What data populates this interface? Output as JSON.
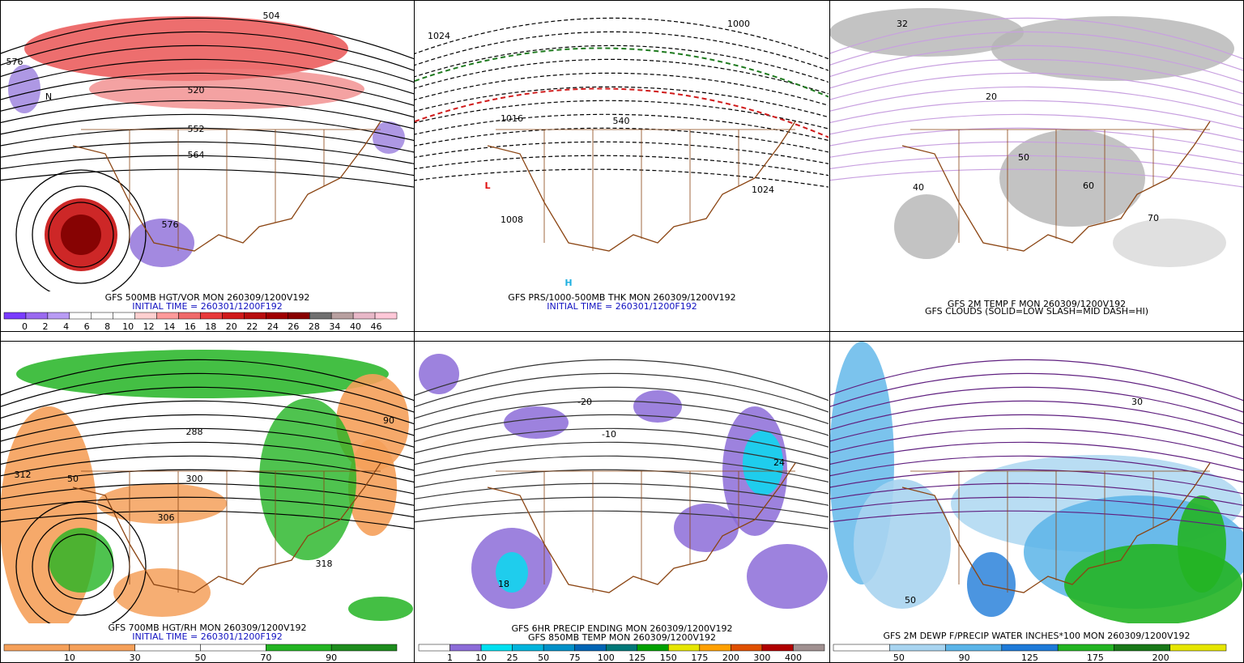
{
  "panels": [
    {
      "caption": [
        "GFS 500MB HGT/VOR MON 260309/1200V192",
        "INITIAL TIME = 260301/1200F192"
      ],
      "colorbar": {
        "labels": [
          "0",
          "2",
          "4",
          "6",
          "8",
          "10",
          "12",
          "14",
          "16",
          "18",
          "20",
          "22",
          "24",
          "26",
          "28",
          "34",
          "40",
          "46"
        ],
        "colors": [
          "#7a3cff",
          "#9a6af0",
          "#b99cf5",
          "#ffffff",
          "#ffffff",
          "#ffffff",
          "#ffd0d0",
          "#ff9a9a",
          "#f06a6a",
          "#e83a3a",
          "#d01a1a",
          "#b80e0e",
          "#a00000",
          "#880000",
          "#707070",
          "#b8a0a0",
          "#e8b8c8",
          "#ffc8d8"
        ]
      },
      "map_labels": [
        "576",
        "504",
        "520",
        "552",
        "564",
        "576",
        "N"
      ]
    },
    {
      "caption": [
        "GFS PRS/1000-500MB THK MON 260309/1200V192",
        "INITIAL TIME = 260301/1200F192"
      ],
      "map_labels": [
        "1024",
        "1016",
        "1008",
        "1024",
        "1000",
        "540",
        "L",
        "H"
      ]
    },
    {
      "caption": [
        "GFS 2M TEMP F MON 260309/1200V192",
        "GFS CLOUDS (SOLID=LOW SLASH=MID DASH=HI)"
      ],
      "map_labels": [
        "32",
        "40",
        "50",
        "60",
        "70",
        "20"
      ]
    },
    {
      "caption": [
        "GFS 700MB HGT/RH MON 260309/1200V192",
        "INITIAL TIME = 260301/1200F192"
      ],
      "colorbar": {
        "labels": [
          "10",
          "30",
          "50",
          "70",
          "90"
        ],
        "colors": [
          "#f5a05a",
          "#f5a05a",
          "#ffffff",
          "#ffffff",
          "#23b423",
          "#1e8c1e"
        ]
      },
      "map_labels": [
        "312",
        "300",
        "288",
        "306",
        "318",
        "50",
        "90"
      ]
    },
    {
      "caption": [
        "GFS 6HR PRECIP ENDING MON 260309/1200V192",
        "GFS 850MB TEMP MON 260309/1200V192"
      ],
      "colorbar": {
        "labels": [
          "1",
          "10",
          "25",
          "50",
          "75",
          "100",
          "125",
          "150",
          "175",
          "200",
          "300",
          "400"
        ],
        "colors": [
          "#ffffff",
          "#8c6cd8",
          "#00e0f0",
          "#00b4dc",
          "#0090c8",
          "#0064b4",
          "#007878",
          "#00a000",
          "#e6e600",
          "#ffa000",
          "#e05000",
          "#b00000",
          "#a09090"
        ]
      },
      "map_labels": [
        "-10",
        "-20",
        "18",
        "24"
      ]
    },
    {
      "caption": [
        "GFS 2M DEWP F/PRECIP WATER INCHES*100 MON 260309/1200V192"
      ],
      "colorbar": {
        "labels": [
          "50",
          "90",
          "125",
          "175",
          "200"
        ],
        "colors": [
          "#ffffff",
          "#a8d4f0",
          "#5ab4e8",
          "#1e7ad8",
          "#23b423",
          "#187818",
          "#e6e600"
        ]
      },
      "map_labels": [
        "30",
        "50"
      ]
    }
  ]
}
